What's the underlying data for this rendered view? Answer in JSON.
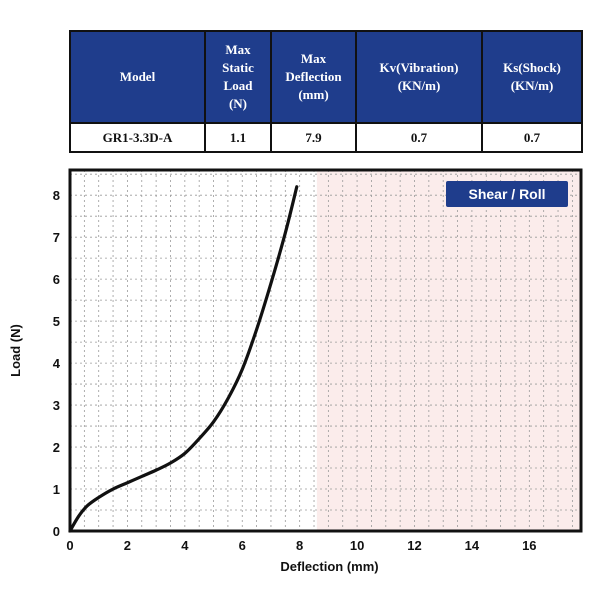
{
  "table": {
    "headers": [
      "Model",
      "Max Static Load (N)",
      "Max Deflection (mm)",
      "Kv(Vibration) (KN/m)",
      "Ks(Shock) (KN/m)"
    ],
    "header_lines": [
      [
        "Model"
      ],
      [
        "Max",
        "Static",
        "Load",
        "(N)"
      ],
      [
        "Max",
        "Deflection",
        "(mm)"
      ],
      [
        "Kv(Vibration)",
        "(KN/m)"
      ],
      [
        "Ks(Shock)",
        "(KN/m)"
      ]
    ],
    "row": [
      "GR1-3.3D-A",
      "1.1",
      "7.9",
      "0.7",
      "0.7"
    ]
  },
  "chart_data": {
    "type": "line",
    "badge": "Shear / Roll",
    "xlabel": "Deflection (mm)",
    "ylabel": "Load (N)",
    "xlim": [
      0,
      17.8
    ],
    "ylim": [
      0,
      8.6
    ],
    "xticks": [
      0,
      2,
      4,
      6,
      8,
      10,
      12,
      14,
      16
    ],
    "yticks": [
      0,
      1,
      2,
      3,
      4,
      5,
      6,
      7,
      8
    ],
    "grid": true,
    "series": [
      {
        "x": [
          0,
          0.3,
          0.6,
          1.0,
          1.5,
          2.0,
          2.5,
          3.0,
          3.5,
          4.0,
          4.5,
          5.0,
          5.5,
          6.0,
          6.5,
          7.0,
          7.5,
          7.9
        ],
        "y": [
          0,
          0.35,
          0.6,
          0.8,
          1.0,
          1.15,
          1.3,
          1.45,
          1.62,
          1.85,
          2.2,
          2.6,
          3.15,
          3.85,
          4.8,
          5.9,
          7.1,
          8.2
        ]
      }
    ],
    "colors": {
      "line": "#111111",
      "badge": "#1f3d8c",
      "grid": "#9a9a9a",
      "shade": "#fbeceb"
    }
  }
}
